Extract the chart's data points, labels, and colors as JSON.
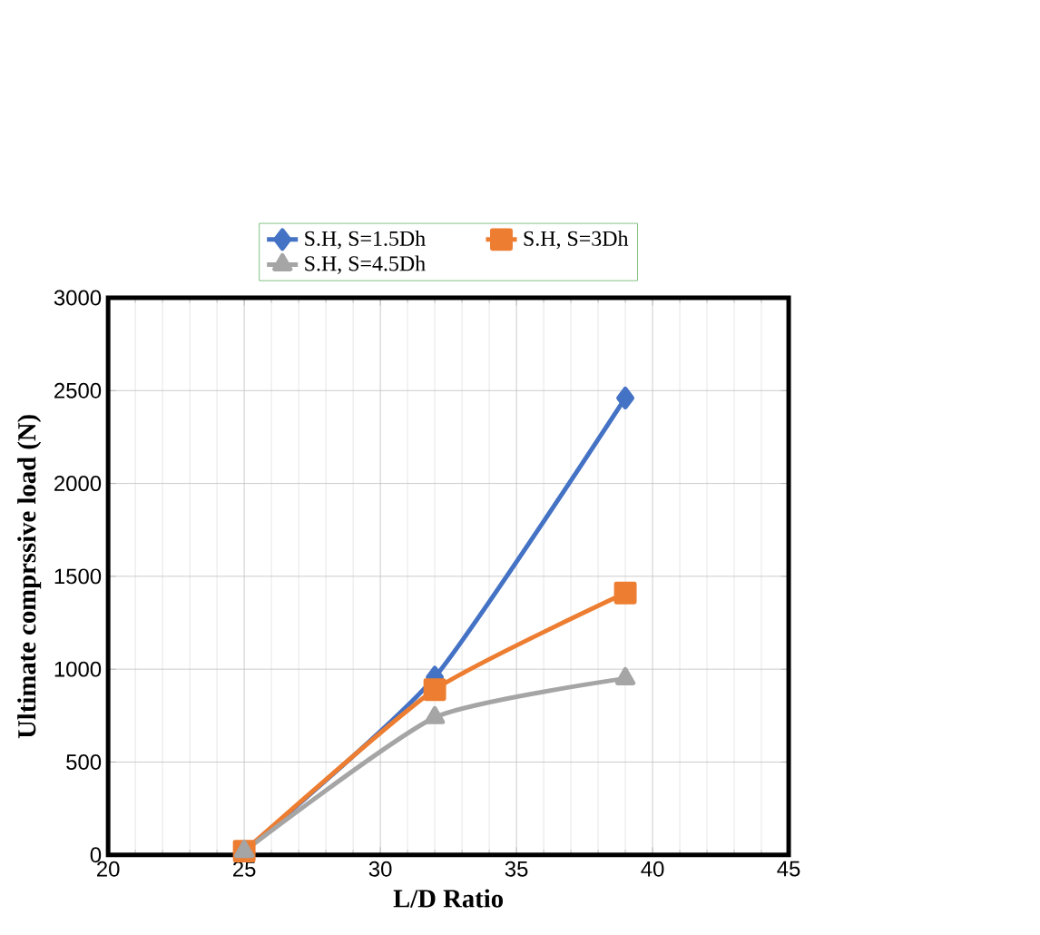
{
  "chart_data": {
    "type": "line",
    "xlabel": "L/D Ratio",
    "ylabel": "Ultimate comprssive load (N)",
    "x": [
      25,
      32,
      39
    ],
    "series": [
      {
        "name": "S.H, S=1.5Dh",
        "color": "#4472c4",
        "marker": "diamond",
        "values": [
          20,
          957,
          2460
        ]
      },
      {
        "name": "S.H, S=3Dh",
        "color": "#ed7d31",
        "marker": "square",
        "values": [
          20,
          890,
          1410
        ]
      },
      {
        "name": "S.H, S=4.5Dh",
        "color": "#a5a5a5",
        "marker": "triangle",
        "values": [
          20,
          740,
          950
        ]
      }
    ],
    "xlim": [
      20,
      45
    ],
    "xticks": [
      20,
      25,
      30,
      35,
      40,
      45
    ],
    "ylim": [
      0,
      3000
    ],
    "yticks": [
      0,
      500,
      1000,
      1500,
      2000,
      2500,
      3000
    ],
    "grid": true,
    "legend": "top",
    "line_style": "solid"
  }
}
